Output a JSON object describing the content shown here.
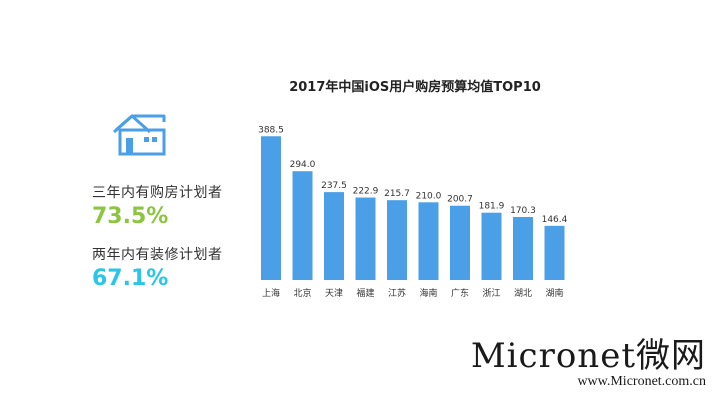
{
  "stats": [
    {
      "label": "三年内有购房计划者",
      "value": "73.5%",
      "color": "#8cc63f"
    },
    {
      "label": "两年内有装修计划者",
      "value": "67.1%",
      "color": "#29c6e8"
    }
  ],
  "chart_data": {
    "type": "bar",
    "title": "2017年中国iOS用户购房预算均值TOP10",
    "categories": [
      "上海",
      "北京",
      "天津",
      "福建",
      "江苏",
      "海南",
      "广东",
      "浙江",
      "湖北",
      "湖南"
    ],
    "values": [
      388.5,
      294.0,
      237.5,
      222.9,
      215.7,
      210.0,
      200.7,
      181.9,
      170.3,
      146.4
    ],
    "value_labels": [
      "388.5",
      "294.0",
      "237.5",
      "222.9",
      "215.7",
      "210.0",
      "200.7",
      "181.9",
      "170.3",
      "146.4"
    ],
    "xlabel": "",
    "ylabel": "",
    "ylim": [
      0,
      400
    ],
    "bar_color": "#4a9fe6",
    "grid": false,
    "legend": "none"
  },
  "icons": {
    "house": "house-icon"
  },
  "colors": {
    "icon_blue": "#4a9fe6",
    "text": "#333333"
  },
  "watermark": {
    "main": "Micronet微网",
    "url": "www.Micronet.com.cn"
  }
}
